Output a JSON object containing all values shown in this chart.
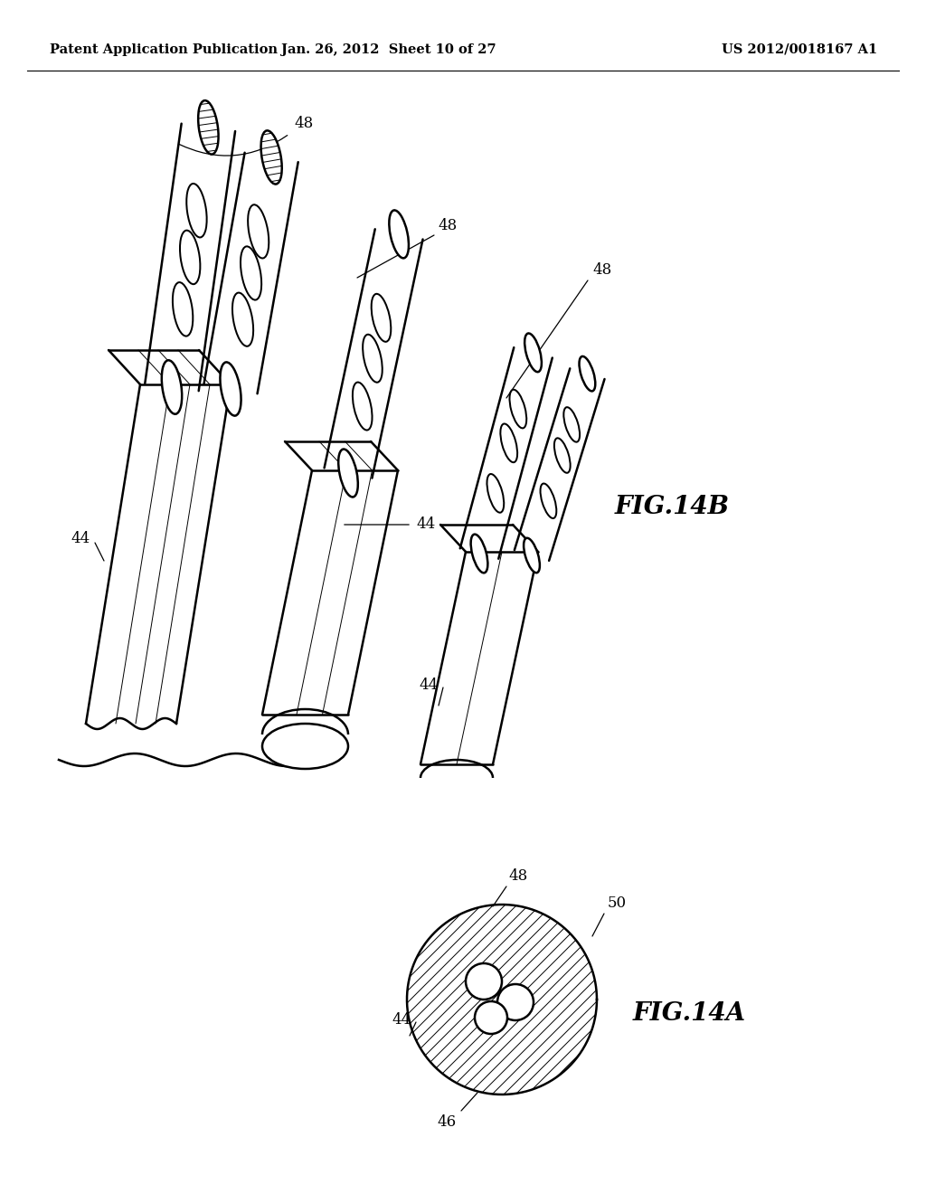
{
  "background_color": "#ffffff",
  "header": {
    "left": "Patent Application Publication",
    "center": "Jan. 26, 2012  Sheet 10 of 27",
    "right": "US 2012/0018167 A1",
    "fontsize": 10.5
  },
  "fig14b_label": {
    "text": "FIG.14B",
    "fontsize": 20
  },
  "fig14a_label": {
    "text": "FIG.14A",
    "fontsize": 20
  },
  "line_color": "#000000",
  "line_width": 1.8,
  "label_fontsize": 12
}
